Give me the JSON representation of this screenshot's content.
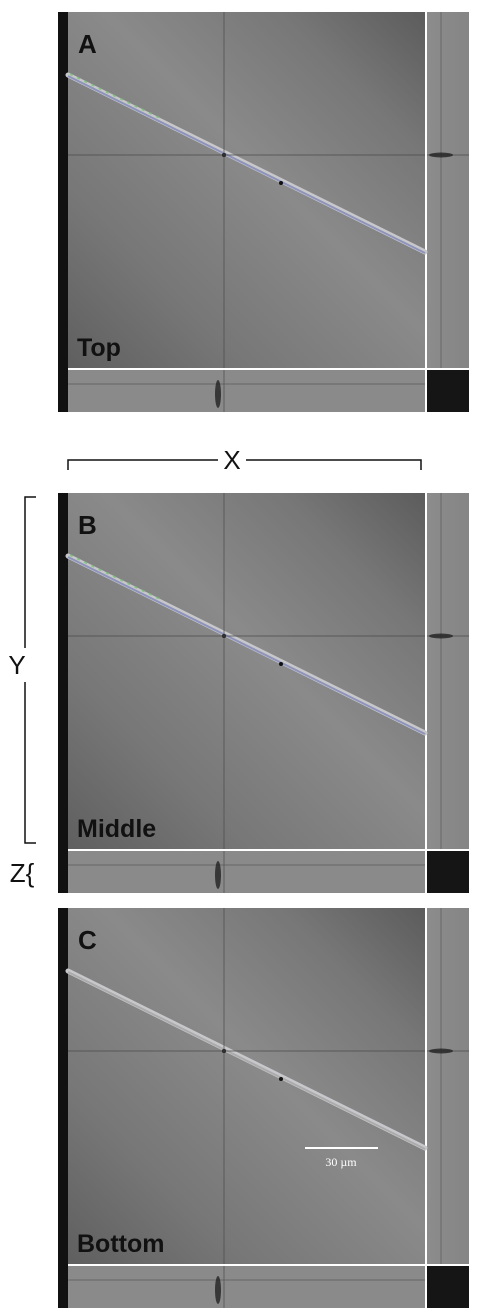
{
  "panels": [
    {
      "letter": "A",
      "label": "Top"
    },
    {
      "letter": "B",
      "label": "Middle"
    },
    {
      "letter": "C",
      "label": "Bottom"
    }
  ],
  "axes": {
    "x": "X",
    "y": "Y",
    "z": "Z{"
  },
  "scale_bar": "30 µm"
}
